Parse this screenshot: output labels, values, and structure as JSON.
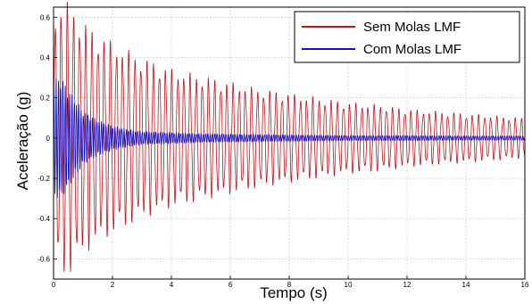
{
  "chart_data": {
    "type": "line",
    "xlabel": "Tempo (s)",
    "ylabel": "Aceleração (g)",
    "xlim": [
      0,
      16
    ],
    "ylim": [
      -0.7,
      0.65
    ],
    "xticks": [
      0,
      2,
      4,
      6,
      8,
      10,
      12,
      14,
      16
    ],
    "xtick_labels": [
      "0",
      "2",
      "4",
      "6",
      "8",
      "10",
      "12",
      "14",
      "16"
    ],
    "yticks": [
      -0.6,
      -0.4,
      -0.2,
      0,
      0.2,
      0.4,
      0.6
    ],
    "ytick_labels": [
      "-0.6",
      "-0.4",
      "-0.2",
      "0",
      "0.2",
      "0.4",
      "0.6"
    ],
    "grid": true,
    "legend_position": "top-right",
    "colors": {
      "sem": "#c0141b",
      "com": "#1010c8"
    },
    "series": [
      {
        "name": "Sem Molas LMF",
        "frequency_hz": 4.8,
        "envelope": {
          "t": [
            0,
            0.3,
            0.6,
            1,
            1.5,
            2,
            3,
            4,
            5,
            6,
            7,
            8,
            9,
            10,
            11,
            12,
            13,
            14,
            15,
            16
          ],
          "amplitude": [
            0.55,
            0.62,
            0.6,
            0.52,
            0.47,
            0.43,
            0.36,
            0.31,
            0.28,
            0.25,
            0.22,
            0.2,
            0.18,
            0.16,
            0.15,
            0.13,
            0.12,
            0.11,
            0.1,
            0.09
          ]
        }
      },
      {
        "name": "Com Molas LMF",
        "frequency_hz": 13,
        "envelope": {
          "t": [
            0,
            0.2,
            0.5,
            1,
            1.5,
            2,
            2.5,
            3,
            4,
            5,
            6,
            8,
            10,
            12,
            14,
            16
          ],
          "amplitude": [
            0.25,
            0.28,
            0.22,
            0.12,
            0.08,
            0.055,
            0.04,
            0.03,
            0.025,
            0.02,
            0.018,
            0.015,
            0.012,
            0.012,
            0.01,
            0.01
          ]
        }
      }
    ]
  }
}
